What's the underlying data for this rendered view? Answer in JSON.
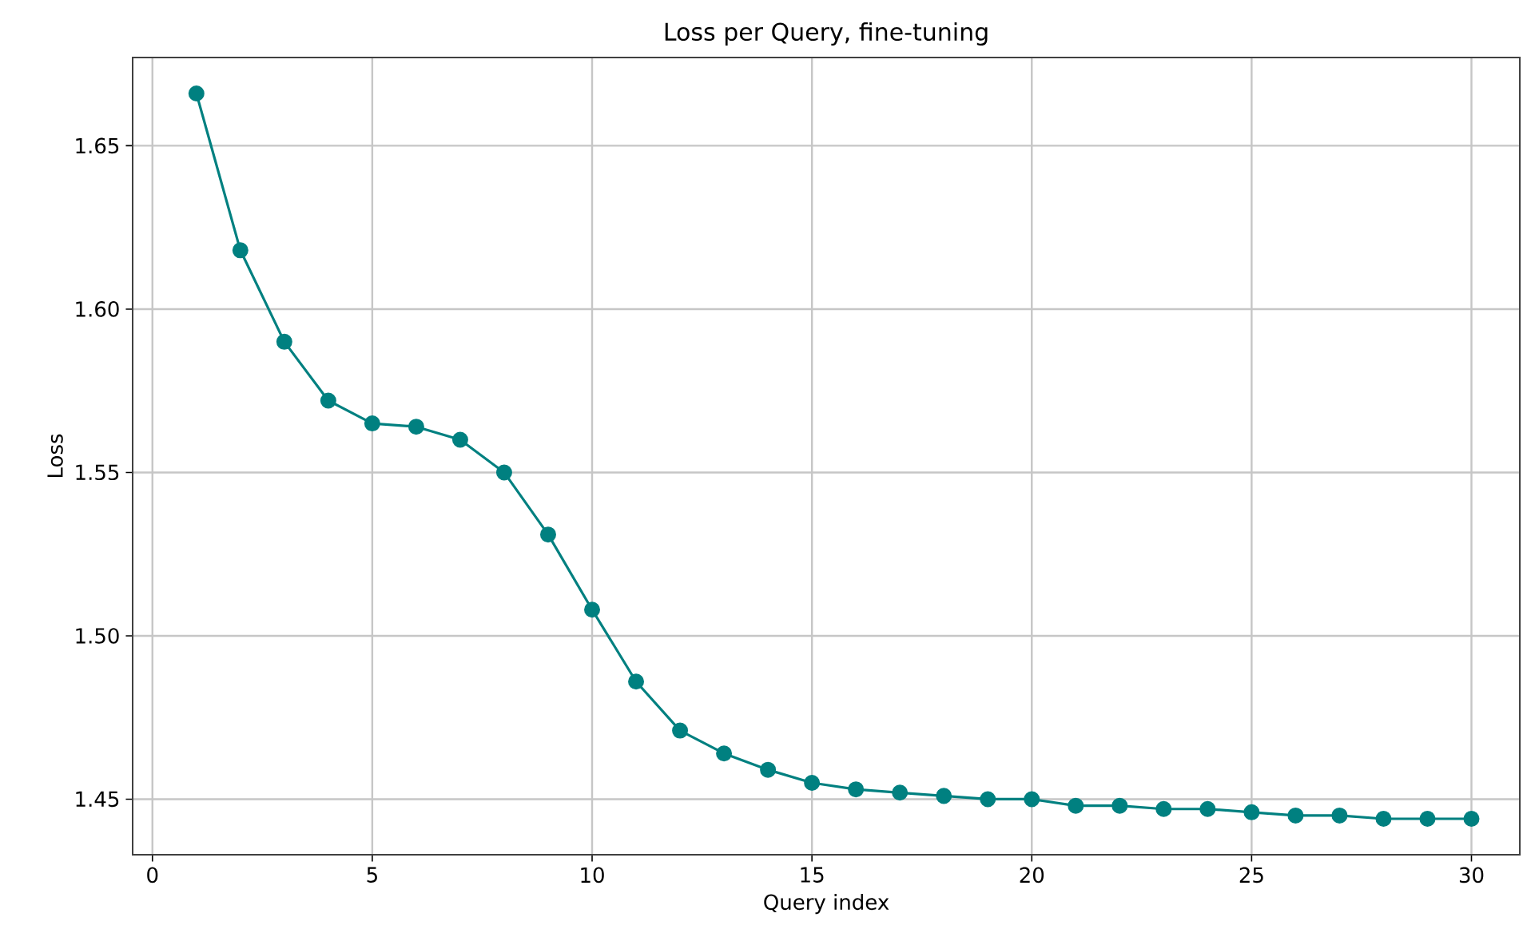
{
  "chart_data": {
    "type": "line",
    "title": "Loss per Query, fine-tuning",
    "xlabel": "Query index",
    "ylabel": "Loss",
    "x": [
      1,
      2,
      3,
      4,
      5,
      6,
      7,
      8,
      9,
      10,
      11,
      12,
      13,
      14,
      15,
      16,
      17,
      18,
      19,
      20,
      21,
      22,
      23,
      24,
      25,
      26,
      27,
      28,
      29,
      30
    ],
    "series": [
      {
        "color": "#008080",
        "values": [
          1.666,
          1.618,
          1.59,
          1.572,
          1.565,
          1.564,
          1.56,
          1.55,
          1.531,
          1.508,
          1.486,
          1.471,
          1.464,
          1.459,
          1.455,
          1.453,
          1.452,
          1.451,
          1.45,
          1.45,
          1.448,
          1.448,
          1.447,
          1.447,
          1.446,
          1.445,
          1.445,
          1.444,
          1.444,
          1.444
        ]
      }
    ],
    "xlim": [
      -0.45,
      31.1
    ],
    "ylim": [
      1.433,
      1.677
    ],
    "xticks": [
      0,
      5,
      10,
      15,
      20,
      25,
      30
    ],
    "yticks": [
      1.45,
      {
        "value": 1.5,
        "label": "1.50"
      },
      1.55,
      {
        "value": 1.6,
        "label": "1.60"
      },
      1.65
    ],
    "grid": true,
    "marker": "circle",
    "line_style": "solid"
  }
}
